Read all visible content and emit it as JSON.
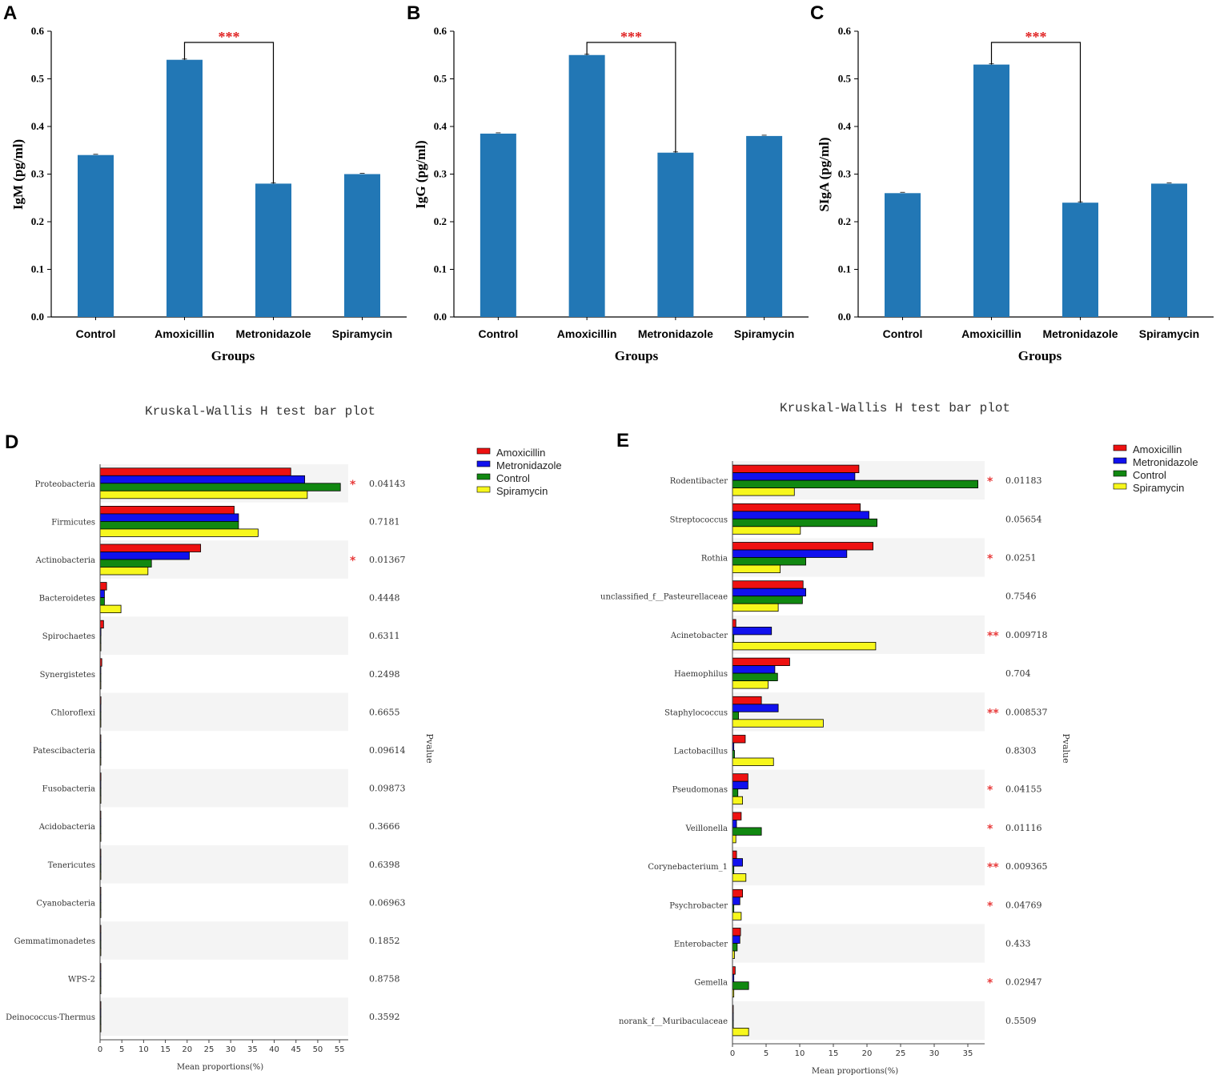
{
  "chart_data": [
    {
      "id": "A",
      "type": "bar",
      "panel_label": "A",
      "categories": [
        "Control",
        "Amoxicillin",
        "Metronidazole",
        "Spiramycin"
      ],
      "values": [
        0.34,
        0.54,
        0.28,
        0.3
      ],
      "xlabel": "Groups",
      "ylabel": "IgM (pg/ml)",
      "ylim": [
        0,
        0.6
      ],
      "yticks": [
        "0.0",
        "0.1",
        "0.2",
        "0.3",
        "0.4",
        "0.5",
        "0.6"
      ],
      "bar_color": "#2277b5",
      "significance": {
        "from": "Amoxicillin",
        "to": "Metronidazole",
        "label": "***"
      }
    },
    {
      "id": "B",
      "type": "bar",
      "panel_label": "B",
      "categories": [
        "Control",
        "Amoxicillin",
        "Metronidazole",
        "Spiramycin"
      ],
      "values": [
        0.385,
        0.55,
        0.345,
        0.38
      ],
      "xlabel": "Groups",
      "ylabel": "IgG (pg/ml)",
      "ylim": [
        0,
        0.6
      ],
      "yticks": [
        "0.0",
        "0.1",
        "0.2",
        "0.3",
        "0.4",
        "0.5",
        "0.6"
      ],
      "bar_color": "#2277b5",
      "significance": {
        "from": "Amoxicillin",
        "to": "Metronidazole",
        "label": "***"
      }
    },
    {
      "id": "C",
      "type": "bar",
      "panel_label": "C",
      "categories": [
        "Control",
        "Amoxicillin",
        "Metronidazole",
        "Spiramycin"
      ],
      "values": [
        0.26,
        0.53,
        0.24,
        0.28
      ],
      "xlabel": "Groups",
      "ylabel": "SIgA (pg/ml)",
      "ylim": [
        0,
        0.6
      ],
      "yticks": [
        "0.0",
        "0.1",
        "0.2",
        "0.3",
        "0.4",
        "0.5",
        "0.6"
      ],
      "bar_color": "#2277b5",
      "significance": {
        "from": "Amoxicillin",
        "to": "Metronidazole",
        "label": "***"
      }
    },
    {
      "id": "D",
      "type": "bar",
      "orientation": "horizontal",
      "panel_label": "D",
      "title": "Kruskal-Wallis H test bar plot",
      "xlabel": "Mean proportions(%)",
      "pvalue_label": "Pvalue",
      "xlim": [
        0,
        57
      ],
      "xticks": [
        "0",
        "5",
        "10",
        "15",
        "20",
        "25",
        "30",
        "35",
        "40",
        "45",
        "50",
        "55"
      ],
      "legend": [
        "Amoxicillin",
        "Metronidazole",
        "Control",
        "Spiramycin"
      ],
      "series_colors": [
        "#ee1111",
        "#1111ee",
        "#118811",
        "#f7f71c"
      ],
      "categories": [
        "Proteobacteria",
        "Firmicutes",
        "Actinobacteria",
        "Bacteroidetes",
        "Spirochaetes",
        "Synergistetes",
        "Chloroflexi",
        "Patescibacteria",
        "Fusobacteria",
        "Acidobacteria",
        "Tenericutes",
        "Cyanobacteria",
        "Gemmatimonadetes",
        "WPS-2",
        "Deinococcus-Thermus"
      ],
      "series": [
        {
          "name": "Amoxicillin",
          "values": [
            43.8,
            30.8,
            23.1,
            1.5,
            0.8,
            0.4,
            0.2,
            0.1,
            0.2,
            0.1,
            0.1,
            0.1,
            0.1,
            0.1,
            0.1
          ]
        },
        {
          "name": "Metronidazole",
          "values": [
            47.0,
            31.8,
            20.5,
            1.0,
            0.2,
            0.1,
            0.1,
            0.1,
            0.1,
            0.1,
            0.1,
            0.1,
            0.1,
            0.1,
            0.1
          ]
        },
        {
          "name": "Control",
          "values": [
            55.2,
            31.8,
            11.8,
            1.0,
            0.1,
            0.1,
            0.1,
            0.1,
            0.1,
            0.1,
            0.1,
            0.1,
            0.1,
            0.1,
            0.1
          ]
        },
        {
          "name": "Spiramycin",
          "values": [
            47.6,
            36.3,
            11.0,
            4.8,
            0.1,
            0.1,
            0.1,
            0.1,
            0.1,
            0.1,
            0.1,
            0.1,
            0.1,
            0.1,
            0.1
          ]
        }
      ],
      "pvalues": [
        "0.04143",
        "0.7181",
        "0.01367",
        "0.4448",
        "0.6311",
        "0.2498",
        "0.6655",
        "0.09614",
        "0.09873",
        "0.3666",
        "0.6398",
        "0.06963",
        "0.1852",
        "0.8758",
        "0.3592"
      ],
      "stars": [
        "*",
        "",
        "*",
        "",
        "",
        "",
        "",
        "",
        "",
        "",
        "",
        "",
        "",
        "",
        ""
      ]
    },
    {
      "id": "E",
      "type": "bar",
      "orientation": "horizontal",
      "panel_label": "E",
      "title": "Kruskal-Wallis H test bar plot",
      "xlabel": "Mean proportions(%)",
      "pvalue_label": "Pvalue",
      "xlim": [
        0,
        37.5
      ],
      "xticks": [
        "0",
        "5",
        "10",
        "15",
        "20",
        "25",
        "30",
        "35"
      ],
      "legend": [
        "Amoxicillin",
        "Metronidazole",
        "Control",
        "Spiramycin"
      ],
      "series_colors": [
        "#ee1111",
        "#1111ee",
        "#118811",
        "#f7f71c"
      ],
      "categories": [
        "Rodentibacter",
        "Streptococcus",
        "Rothia",
        "unclassified_f__Pasteurellaceae",
        "Acinetobacter",
        "Haemophilus",
        "Staphylococcus",
        "Lactobacillus",
        "Pseudomonas",
        "Veillonella",
        "Corynebacterium_1",
        "Psychrobacter",
        "Enterobacter",
        "Gemella",
        "norank_f__Muribaculaceae"
      ],
      "series": [
        {
          "name": "Amoxicillin",
          "values": [
            18.8,
            19.0,
            20.9,
            10.5,
            0.5,
            8.5,
            4.3,
            1.9,
            2.3,
            1.3,
            0.6,
            1.5,
            1.2,
            0.4,
            0.1
          ]
        },
        {
          "name": "Metronidazole",
          "values": [
            18.2,
            20.3,
            17.0,
            10.9,
            5.8,
            6.3,
            6.8,
            0.2,
            2.3,
            0.6,
            1.5,
            1.1,
            1.1,
            0.2,
            0.1
          ]
        },
        {
          "name": "Control",
          "values": [
            36.5,
            21.5,
            10.9,
            10.4,
            0.2,
            6.7,
            0.9,
            0.3,
            0.8,
            4.3,
            0.2,
            0.2,
            0.7,
            2.4,
            0.1
          ]
        },
        {
          "name": "Spiramycin",
          "values": [
            9.2,
            10.1,
            7.1,
            6.8,
            21.3,
            5.3,
            13.5,
            6.1,
            1.5,
            0.5,
            2.0,
            1.3,
            0.3,
            0.2,
            2.4
          ]
        }
      ],
      "pvalues": [
        "0.01183",
        "0.05654",
        "0.0251",
        "0.7546",
        "0.009718",
        "0.704",
        "0.008537",
        "0.8303",
        "0.04155",
        "0.01116",
        "0.009365",
        "0.04769",
        "0.433",
        "0.02947",
        "0.5509"
      ],
      "stars": [
        "*",
        "",
        "*",
        "",
        "**",
        "",
        "**",
        "",
        "*",
        "*",
        "**",
        "*",
        "",
        "*",
        ""
      ]
    }
  ]
}
